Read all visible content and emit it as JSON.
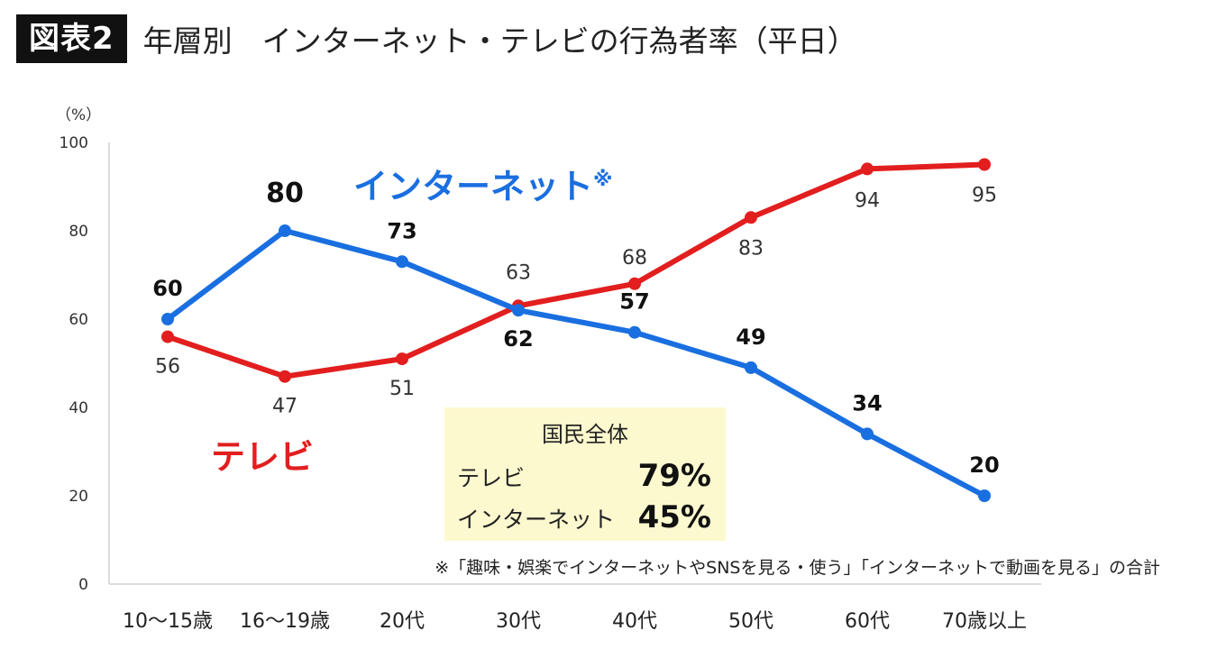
{
  "header": {
    "badge": "図表2",
    "title": "年層別　インターネット・テレビの行為者率（平日）"
  },
  "chart_data": {
    "type": "line",
    "categories": [
      "10～15歳",
      "16～19歳",
      "20代",
      "30代",
      "40代",
      "50代",
      "60代",
      "70歳以上"
    ],
    "series": [
      {
        "name": "インターネット",
        "name_suffix": "※",
        "color": "#1a6fe0",
        "values": [
          60,
          80,
          73,
          62,
          57,
          49,
          34,
          20
        ]
      },
      {
        "name": "テレビ",
        "color": "#e21e1e",
        "values": [
          56,
          47,
          51,
          63,
          68,
          83,
          94,
          95
        ]
      }
    ],
    "yaxis": {
      "unit": "（%）",
      "min": 0,
      "max": 100,
      "ticks": [
        0,
        20,
        40,
        60,
        80,
        100
      ]
    },
    "note": "※「趣味・娯楽でインターネットやSNSを見る・使う」「インターネットで動画を見る」の合計"
  },
  "summary": {
    "title": "国民全体",
    "rows": [
      {
        "label": "テレビ",
        "value": "79%"
      },
      {
        "label": "インターネット",
        "value": "45%"
      }
    ]
  }
}
